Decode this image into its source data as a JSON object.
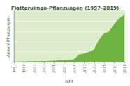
{
  "chart_data": {
    "type": "area",
    "title": "Flatterulmen-Pflanzungen (1997–2019)",
    "x_label": "Jahr",
    "y_label": "Anzahl Pflanzungen",
    "x": [
      1997,
      1998,
      1999,
      2000,
      2001,
      2002,
      2003,
      2004,
      2005,
      2006,
      2007,
      2008,
      2009,
      2010,
      2011,
      2012,
      2013,
      2014,
      2015,
      2016,
      2017,
      2018,
      2019
    ],
    "values": [
      0,
      1,
      1,
      2,
      2,
      3,
      3,
      4,
      5,
      6,
      7,
      8,
      12,
      35,
      40,
      48,
      60,
      110,
      140,
      150,
      185,
      215,
      230
    ],
    "color": "#6cb33f",
    "xlim": [
      1997,
      2019
    ],
    "xticks": [
      1997,
      1999,
      2001,
      2003,
      2005,
      2007,
      2009,
      2011,
      2013,
      2015,
      2017,
      2019
    ],
    "ylim": [
      0,
      250
    ],
    "yticks": [
      0,
      50,
      100,
      150,
      200,
      250
    ],
    "grid": true,
    "tick_labels": "x"
  }
}
